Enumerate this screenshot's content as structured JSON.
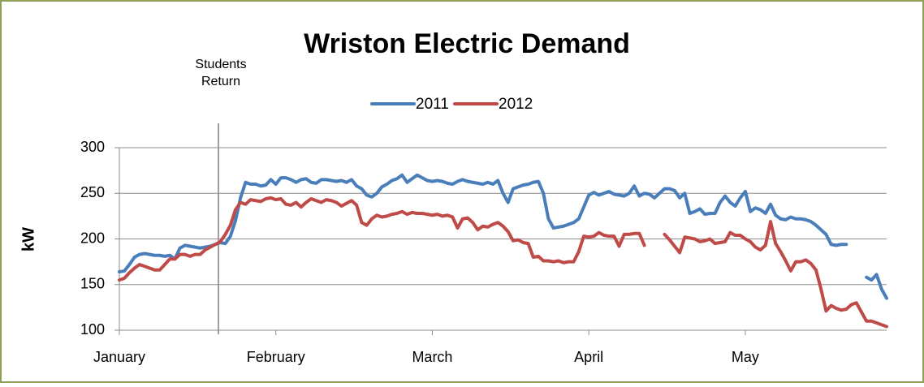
{
  "chart_data": {
    "type": "line",
    "title": "Wriston Electric Demand",
    "ylabel": "kW",
    "annotation": {
      "lines": [
        "Students",
        "Return"
      ]
    },
    "categories": [
      "January",
      null,
      null,
      null,
      null,
      null,
      null,
      null,
      null,
      null,
      null,
      null,
      null,
      null,
      null,
      null,
      null,
      null,
      null,
      null,
      null,
      null,
      null,
      null,
      null,
      null,
      null,
      null,
      null,
      null,
      null,
      "February",
      null,
      null,
      null,
      null,
      null,
      null,
      null,
      null,
      null,
      null,
      null,
      null,
      null,
      null,
      null,
      null,
      null,
      null,
      null,
      null,
      null,
      null,
      null,
      null,
      null,
      null,
      null,
      null,
      null,
      null,
      "March",
      null,
      null,
      null,
      null,
      null,
      null,
      null,
      null,
      null,
      null,
      null,
      null,
      null,
      null,
      null,
      null,
      null,
      null,
      null,
      null,
      null,
      null,
      null,
      null,
      null,
      null,
      null,
      null,
      null,
      null,
      "April",
      null,
      null,
      null,
      null,
      null,
      null,
      null,
      null,
      null,
      null,
      null,
      null,
      null,
      null,
      null,
      null,
      null,
      null,
      null,
      null,
      null,
      null,
      null,
      null,
      null,
      null,
      null,
      null,
      null,
      null,
      "May",
      null,
      null,
      null,
      null,
      null,
      null,
      null,
      null,
      null,
      null,
      null,
      null,
      null,
      null,
      null,
      null,
      null,
      null,
      null,
      null,
      null,
      null,
      null,
      null,
      null,
      null,
      null,
      null
    ],
    "series": [
      {
        "name": "2011",
        "color": "#4a7ebb",
        "values": [
          164,
          165,
          172,
          180,
          183,
          184,
          183,
          182,
          182,
          181,
          182,
          178,
          190,
          193,
          192,
          191,
          190,
          191,
          192,
          194,
          196,
          195,
          203,
          220,
          245,
          262,
          260,
          260,
          258,
          259,
          265,
          260,
          267,
          267,
          265,
          262,
          265,
          266,
          262,
          261,
          265,
          265,
          264,
          263,
          264,
          262,
          265,
          258,
          255,
          248,
          246,
          250,
          257,
          260,
          264,
          266,
          270,
          262,
          266,
          270,
          267,
          264,
          263,
          264,
          263,
          261,
          260,
          263,
          265,
          263,
          262,
          261,
          260,
          262,
          260,
          264,
          250,
          240,
          255,
          257,
          259,
          260,
          262,
          263,
          250,
          222,
          212,
          213,
          214,
          216,
          218,
          222,
          235,
          248,
          251,
          248,
          250,
          252,
          249,
          248,
          247,
          250,
          258,
          247,
          250,
          249,
          245,
          250,
          255,
          255,
          253,
          245,
          250,
          228,
          230,
          233,
          227,
          228,
          228,
          240,
          247,
          240,
          236,
          245,
          252,
          230,
          234,
          232,
          228,
          238,
          226,
          222,
          221,
          224,
          222,
          222,
          221,
          219,
          215,
          210,
          205,
          194,
          193,
          194,
          194,
          null,
          null,
          null,
          158,
          155,
          161,
          145,
          135
        ]
      },
      {
        "name": "2012",
        "color": "#be4b48",
        "values": [
          155,
          157,
          163,
          168,
          172,
          170,
          168,
          166,
          166,
          172,
          178,
          178,
          183,
          183,
          181,
          183,
          183,
          188,
          191,
          194,
          197,
          205,
          215,
          232,
          240,
          238,
          243,
          242,
          241,
          244,
          245,
          243,
          244,
          238,
          237,
          240,
          235,
          240,
          244,
          242,
          240,
          243,
          242,
          240,
          236,
          239,
          242,
          237,
          218,
          215,
          222,
          226,
          224,
          225,
          227,
          228,
          230,
          227,
          229,
          228,
          228,
          227,
          226,
          227,
          225,
          226,
          224,
          212,
          222,
          223,
          218,
          210,
          214,
          213,
          216,
          218,
          214,
          208,
          198,
          199,
          196,
          195,
          180,
          181,
          176,
          176,
          175,
          176,
          174,
          175,
          175,
          186,
          203,
          202,
          203,
          207,
          204,
          203,
          203,
          192,
          205,
          205,
          206,
          206,
          193,
          null,
          null,
          null,
          205,
          199,
          192,
          185,
          202,
          201,
          200,
          197,
          198,
          200,
          195,
          196,
          197,
          207,
          204,
          204,
          200,
          197,
          191,
          188,
          193,
          219,
          195,
          186,
          176,
          165,
          175,
          175,
          177,
          173,
          166,
          145,
          121,
          127,
          124,
          122,
          123,
          128,
          130,
          120,
          110,
          110,
          108,
          106,
          104
        ]
      }
    ],
    "ylim": [
      100,
      300
    ],
    "yticks": [
      100,
      150,
      200,
      250,
      300
    ],
    "grid": true,
    "legend": "top"
  }
}
